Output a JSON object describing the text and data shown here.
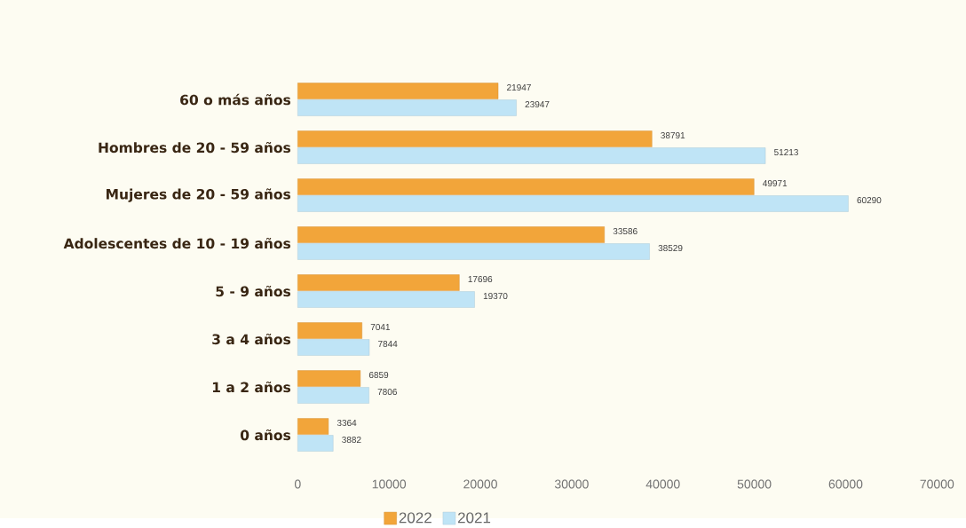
{
  "chart_data": {
    "type": "bar",
    "orientation": "horizontal",
    "categories": [
      "60  o más años",
      "Hombres de 20 - 59 años",
      "Mujeres de 20 - 59 años",
      "Adolescentes de 10 - 19 años",
      "5 - 9 años",
      "3 a 4 años",
      "1 a 2 años",
      "0 años"
    ],
    "series": [
      {
        "name": "2022",
        "color": "#f2a53a",
        "values": [
          21947,
          38791,
          49971,
          33586,
          17696,
          7041,
          6859,
          3364
        ]
      },
      {
        "name": "2021",
        "color": "#bfe4f6",
        "values": [
          23947,
          51213,
          60290,
          38529,
          19370,
          7844,
          7806,
          3882
        ]
      }
    ],
    "xlim": [
      0,
      70000
    ],
    "xticks": [
      0,
      10000,
      20000,
      30000,
      40000,
      50000,
      60000,
      70000
    ],
    "data_labels": true,
    "grid": false,
    "legend": "bottom"
  }
}
